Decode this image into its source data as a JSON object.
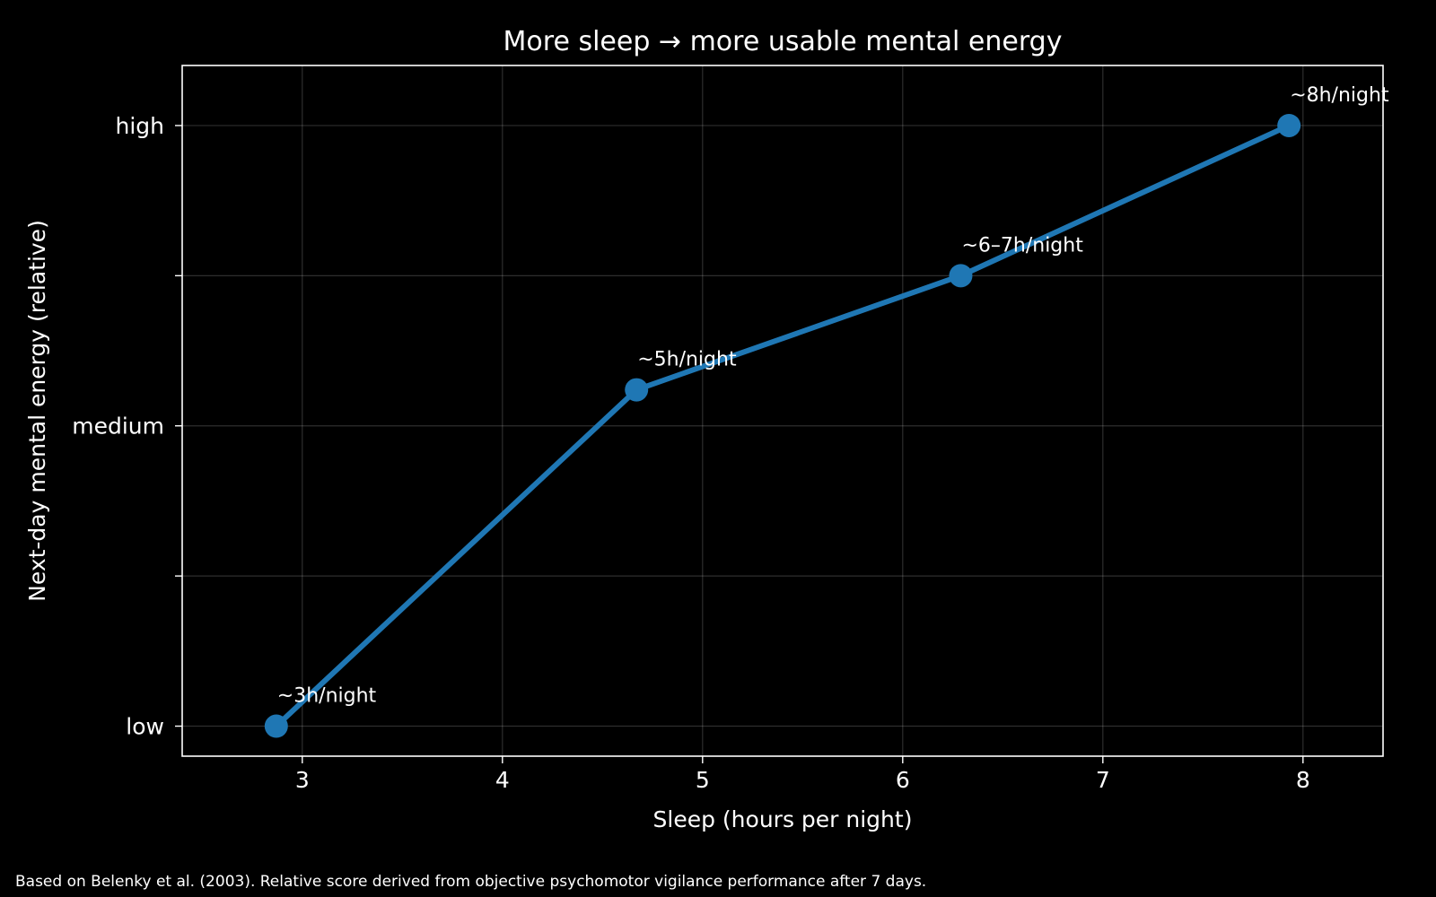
{
  "chart_data": {
    "type": "line",
    "title": "More sleep → more usable mental energy",
    "xlabel": "Sleep (hours per night)",
    "ylabel": "Next-day mental energy (relative)",
    "xlim": [
      2.4,
      8.4
    ],
    "ylim": [
      -0.1,
      2.2
    ],
    "xticks": [
      3,
      4,
      5,
      6,
      7,
      8
    ],
    "yticks": [
      {
        "value": 0,
        "label": "low"
      },
      {
        "value": 0.5,
        "label": ""
      },
      {
        "value": 1,
        "label": "medium"
      },
      {
        "value": 1.5,
        "label": ""
      },
      {
        "value": 2,
        "label": "high"
      }
    ],
    "grid": true,
    "series": [
      {
        "color": "#1f77b4",
        "points": [
          {
            "x": 2.87,
            "y": 0.0,
            "label": "~3h/night"
          },
          {
            "x": 4.67,
            "y": 1.12,
            "label": "~5h/night"
          },
          {
            "x": 6.29,
            "y": 1.5,
            "label": "~6–7h/night"
          },
          {
            "x": 7.93,
            "y": 2.0,
            "label": "~8h/night"
          }
        ]
      }
    ]
  },
  "footnote": "Based on Belenky et al. (2003). Relative score derived from objective psychomotor vigilance performance after 7 days."
}
